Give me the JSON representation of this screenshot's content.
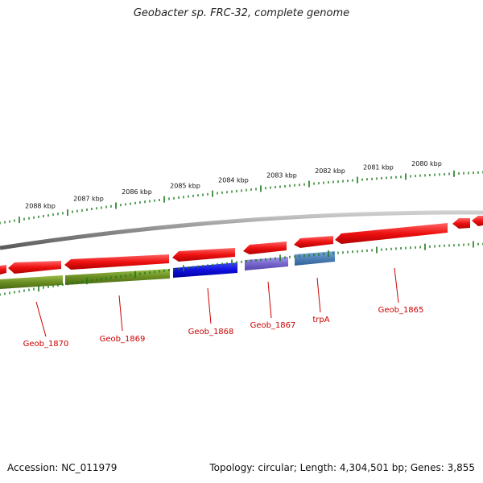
{
  "title": "Geobacter sp. FRC-32, complete genome",
  "footer": {
    "accession": "Accession: NC_011979",
    "topology": "Topology: circular; Length: 4,304,501 bp; Genes: 3,855"
  },
  "colors": {
    "background": "#ffffff",
    "backbone": "#8c8c8c",
    "tick": "#1a7a1a",
    "gene_forward": "#ee1111",
    "gene_other": "#6b8e23",
    "gene_blue": "#1010dd",
    "gene_purple": "#7766cc",
    "gene_steel": "#4f81b8",
    "label": "#cc0000"
  },
  "scale": {
    "unit": "kbp",
    "ticks": [
      {
        "kbp": 2088,
        "label": "2088 kbp"
      },
      {
        "kbp": 2087,
        "label": "2087 kbp"
      },
      {
        "kbp": 2086,
        "label": "2086 kbp"
      },
      {
        "kbp": 2085,
        "label": "2085 kbp"
      },
      {
        "kbp": 2084,
        "label": "2084 kbp"
      },
      {
        "kbp": 2083,
        "label": "2083 kbp"
      },
      {
        "kbp": 2082,
        "label": "2082 kbp"
      },
      {
        "kbp": 2081,
        "label": "2081 kbp"
      },
      {
        "kbp": 2080,
        "label": "2080 kbp"
      }
    ]
  },
  "genes": [
    {
      "name": "Geob_1870",
      "track": "lower",
      "color": "gene_other"
    },
    {
      "name": "Geob_1869",
      "track": "lower",
      "color": "gene_other"
    },
    {
      "name": "Geob_1868",
      "track": "lower",
      "color": "gene_blue"
    },
    {
      "name": "Geob_1867",
      "track": "lower",
      "color": "gene_purple"
    },
    {
      "name": "trpA",
      "track": "lower",
      "color": "gene_steel"
    },
    {
      "name": "Geob_1865",
      "track": "upper",
      "color": "gene_forward"
    }
  ]
}
